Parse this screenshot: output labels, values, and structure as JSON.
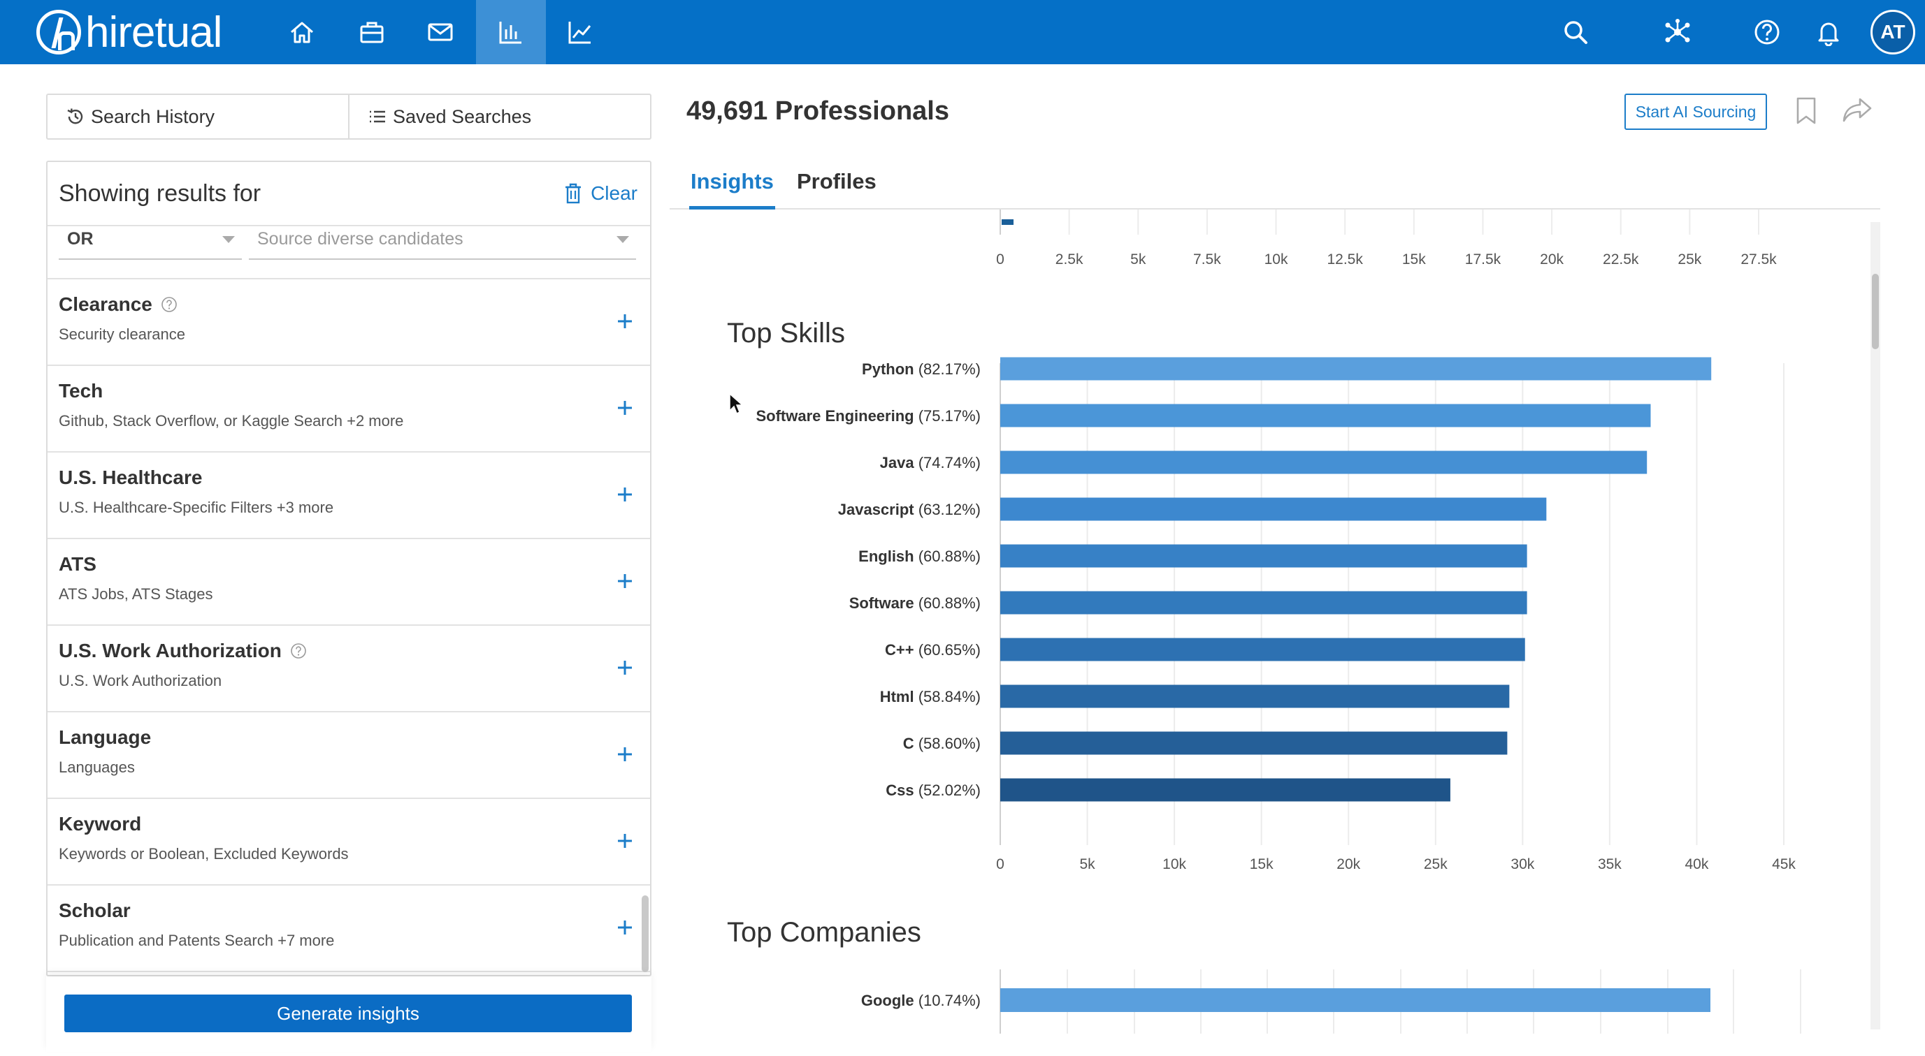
{
  "app": {
    "logo_text": "hiretual",
    "avatar_initials": "AT"
  },
  "nav": {
    "icons": [
      "home-icon",
      "briefcase-icon",
      "mail-icon",
      "bar-chart-icon",
      "trend-icon",
      "search-icon",
      "network-icon",
      "help-icon",
      "bell-icon"
    ],
    "active": "bar-chart-icon"
  },
  "left": {
    "history_tab": "Search History",
    "saved_tab": "Saved Searches",
    "showing_results": "Showing results for",
    "clear": "Clear",
    "or_select": "OR",
    "source_placeholder": "Source diverse candidates",
    "filters": [
      {
        "title": "Clearance",
        "subtitle": "Security clearance",
        "help": true
      },
      {
        "title": "Tech",
        "subtitle": "Github, Stack Overflow, or Kaggle Search +2 more",
        "help": false
      },
      {
        "title": "U.S. Healthcare",
        "subtitle": "U.S. Healthcare-Specific Filters +3 more",
        "help": false
      },
      {
        "title": "ATS",
        "subtitle": "ATS Jobs, ATS Stages",
        "help": false
      },
      {
        "title": "U.S. Work Authorization",
        "subtitle": "U.S. Work Authorization",
        "help": true
      },
      {
        "title": "Language",
        "subtitle": "Languages",
        "help": false
      },
      {
        "title": "Keyword",
        "subtitle": "Keywords or Boolean, Excluded Keywords",
        "help": false
      },
      {
        "title": "Scholar",
        "subtitle": "Publication and Patents Search +7 more",
        "help": false
      }
    ],
    "generate_button": "Generate insights"
  },
  "main": {
    "count_title": "49,691 Professionals",
    "ai_sourcing_button": "Start AI Sourcing",
    "tabs": [
      {
        "label": "Insights",
        "active": true
      },
      {
        "label": "Profiles",
        "active": false
      }
    ]
  },
  "chart_data": [
    {
      "type": "bar",
      "title": "",
      "orientation": "horizontal",
      "partial": true,
      "tick_labels": [
        "0",
        "2.5k",
        "5k",
        "7.5k",
        "10k",
        "12.5k",
        "15k",
        "17.5k",
        "20k",
        "22.5k",
        "25k",
        "27.5k"
      ],
      "xlim": [
        0,
        27500
      ],
      "color": "#1a5f99"
    },
    {
      "type": "bar",
      "title": "Top Skills",
      "orientation": "horizontal",
      "categories": [
        "Python (82.17%)",
        "Software Engineering (75.17%)",
        "Java (74.74%)",
        "Javascript (63.12%)",
        "English (60.88%)",
        "Software (60.88%)",
        "C++ (60.65%)",
        "Html (58.84%)",
        "C (58.60%)",
        "Css (52.02%)"
      ],
      "values": [
        40833,
        37353,
        37140,
        31365,
        30252,
        30252,
        30137,
        29238,
        29119,
        25849
      ],
      "tick_labels": [
        "0",
        "5k",
        "10k",
        "15k",
        "20k",
        "25k",
        "30k",
        "35k",
        "40k",
        "45k"
      ],
      "xlim": [
        0,
        45000
      ],
      "colors": [
        "#5a9fdd",
        "#4b96d8",
        "#4590d4",
        "#3d88cf",
        "#3781c6",
        "#327abd",
        "#2d71b2",
        "#2969a6",
        "#255f98",
        "#1f5489"
      ],
      "grid": true
    },
    {
      "type": "bar",
      "title": "Top Companies",
      "orientation": "horizontal",
      "partial": true,
      "categories": [
        "Google (10.74%)"
      ],
      "values": [
        5337
      ],
      "xlim": [
        0,
        6000
      ],
      "colors": [
        "#5a9fdd"
      ],
      "grid": true
    }
  ]
}
